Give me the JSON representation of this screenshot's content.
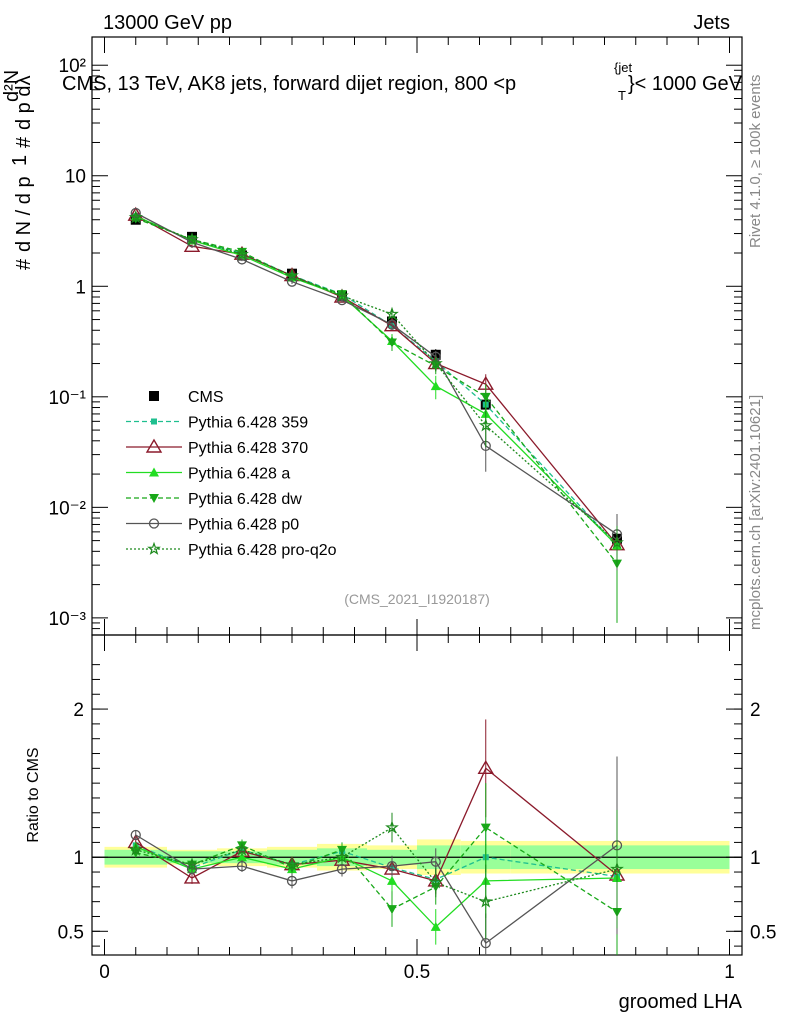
{
  "header": {
    "energy_label": "13000 GeV pp",
    "category_label": "Jets",
    "plot_title": "CMS, 13 TeV, AK8 jets, forward dijet region, 800 <p",
    "plot_title_sup": "{jet",
    "plot_title_sub": "T",
    "plot_title_end": "}< 1000 GeV",
    "analysis_id": "(CMS_2021_I1920187)",
    "side_rivet": "Rivet 4.1.0, ≥ 100k events",
    "side_mcplots": "mcplots.cern.ch [arXiv:2401.10621]"
  },
  "colors": {
    "data": "#000000",
    "p359": "#1fbf8f",
    "p370": "#8b1a2b",
    "pa": "#22dd22",
    "pdw": "#18a818",
    "pp0": "#555555",
    "pq2o": "#1d8a1d",
    "band_yellow": "#ffff99",
    "band_green": "#99ff99"
  },
  "chart_data": [
    {
      "type": "line",
      "panel": "main",
      "yscale": "log",
      "xlim": [
        -0.02,
        1.02
      ],
      "ylim": [
        0.0007,
        180
      ],
      "ylabel": "1/dN/dp_T # d²N/dp_T dλ",
      "y_tick_labels": [
        "10⁻³",
        "10⁻²",
        "10⁻¹",
        "1",
        "10",
        "10²"
      ],
      "x": [
        0.05,
        0.14,
        0.22,
        0.3,
        0.38,
        0.46,
        0.53,
        0.61,
        0.82
      ],
      "series": [
        {
          "key": "data",
          "name": "CMS",
          "values": [
            4.0,
            2.8,
            1.9,
            1.3,
            0.82,
            0.48,
            0.24,
            0.085,
            0.0052
          ],
          "err": [
            0.2,
            0.12,
            0.08,
            0.07,
            0.05,
            0.06,
            0.03,
            0.015,
            0.0008
          ]
        },
        {
          "key": "p359",
          "name": "Pythia 6.428 359",
          "values": [
            4.3,
            2.6,
            2.0,
            1.25,
            0.85,
            0.44,
            0.21,
            0.085,
            0.0045
          ],
          "err": [
            0.1,
            0.08,
            0.06,
            0.05,
            0.04,
            0.04,
            0.03,
            0.02,
            0.002
          ]
        },
        {
          "key": "p370",
          "name": "Pythia 6.428 370",
          "values": [
            4.4,
            2.3,
            1.95,
            1.25,
            0.8,
            0.44,
            0.2,
            0.13,
            0.0046
          ],
          "err": [
            0.1,
            0.08,
            0.06,
            0.05,
            0.04,
            0.04,
            0.03,
            0.03,
            0.002
          ]
        },
        {
          "key": "pa",
          "name": "Pythia 6.428 a",
          "values": [
            4.3,
            2.6,
            1.9,
            1.2,
            0.82,
            0.32,
            0.125,
            0.07,
            0.0045
          ],
          "err": [
            0.1,
            0.08,
            0.06,
            0.05,
            0.04,
            0.05,
            0.03,
            0.02,
            0.002
          ]
        },
        {
          "key": "pdw",
          "name": "Pythia 6.428 dw",
          "values": [
            4.1,
            2.65,
            2.05,
            1.2,
            0.85,
            0.31,
            0.19,
            0.1,
            0.0031
          ],
          "err": [
            0.1,
            0.08,
            0.06,
            0.05,
            0.04,
            0.05,
            0.03,
            0.03,
            0.0022
          ]
        },
        {
          "key": "pp0",
          "name": "Pythia 6.428 p0",
          "values": [
            4.6,
            2.5,
            1.75,
            1.1,
            0.75,
            0.45,
            0.23,
            0.036,
            0.0057
          ],
          "err": [
            0.1,
            0.08,
            0.06,
            0.05,
            0.04,
            0.04,
            0.03,
            0.015,
            0.003
          ]
        },
        {
          "key": "pq2o",
          "name": "Pythia 6.428 pro-q2o",
          "values": [
            4.2,
            2.65,
            1.95,
            1.25,
            0.82,
            0.56,
            0.2,
            0.055,
            0.0048
          ],
          "err": [
            0.1,
            0.08,
            0.06,
            0.05,
            0.04,
            0.05,
            0.03,
            0.02,
            0.002
          ]
        }
      ]
    },
    {
      "type": "line",
      "panel": "ratio",
      "xlabel": "groomed LHA",
      "ylabel": "Ratio to CMS",
      "xlim": [
        -0.02,
        1.02
      ],
      "ylim": [
        0.34,
        2.5
      ],
      "x_tick_labels": [
        "0",
        "0.5",
        "1"
      ],
      "y_tick_labels": [
        "0.5",
        "1",
        "2"
      ],
      "bins": [
        {
          "lo": 0.0,
          "hi": 0.1,
          "stat": 0.05,
          "tot": 0.07
        },
        {
          "lo": 0.1,
          "hi": 0.18,
          "stat": 0.04,
          "tot": 0.05
        },
        {
          "lo": 0.18,
          "hi": 0.26,
          "stat": 0.04,
          "tot": 0.06
        },
        {
          "lo": 0.26,
          "hi": 0.34,
          "stat": 0.05,
          "tot": 0.07
        },
        {
          "lo": 0.34,
          "hi": 0.42,
          "stat": 0.06,
          "tot": 0.09
        },
        {
          "lo": 0.42,
          "hi": 0.5,
          "stat": 0.05,
          "tot": 0.08
        },
        {
          "lo": 0.5,
          "hi": 0.57,
          "stat": 0.08,
          "tot": 0.12
        },
        {
          "lo": 0.57,
          "hi": 0.65,
          "stat": 0.08,
          "tot": 0.11
        },
        {
          "lo": 0.65,
          "hi": 1.0,
          "stat": 0.08,
          "tot": 0.11
        }
      ],
      "series": [
        {
          "key": "p359",
          "values": [
            1.08,
            0.93,
            1.05,
            0.95,
            1.04,
            0.93,
            0.85,
            1.0,
            0.87
          ],
          "err": [
            0.03,
            0.04,
            0.04,
            0.05,
            0.05,
            0.07,
            0.09,
            0.2,
            0.4
          ]
        },
        {
          "key": "p370",
          "values": [
            1.1,
            0.86,
            1.04,
            0.95,
            0.98,
            0.92,
            0.84,
            1.6,
            0.88
          ],
          "err": [
            0.03,
            0.04,
            0.04,
            0.05,
            0.05,
            0.07,
            0.09,
            0.33,
            0.4
          ]
        },
        {
          "key": "pa",
          "values": [
            1.07,
            0.92,
            1.0,
            0.92,
            1.0,
            0.84,
            0.53,
            0.84,
            0.86
          ],
          "err": [
            0.03,
            0.04,
            0.04,
            0.05,
            0.05,
            0.08,
            0.12,
            0.25,
            0.4
          ]
        },
        {
          "key": "pdw",
          "values": [
            1.03,
            0.95,
            1.08,
            0.93,
            1.05,
            0.65,
            0.8,
            1.2,
            0.63
          ],
          "err": [
            0.03,
            0.04,
            0.04,
            0.05,
            0.05,
            0.12,
            0.12,
            0.3,
            0.45
          ]
        },
        {
          "key": "pp0",
          "values": [
            1.15,
            0.92,
            0.94,
            0.84,
            0.92,
            0.94,
            0.97,
            0.42,
            1.08
          ],
          "err": [
            0.03,
            0.04,
            0.04,
            0.05,
            0.05,
            0.07,
            0.09,
            0.2,
            0.6
          ]
        },
        {
          "key": "pq2o",
          "values": [
            1.05,
            0.95,
            1.05,
            0.95,
            1.0,
            1.2,
            0.83,
            0.7,
            0.92
          ],
          "err": [
            0.03,
            0.04,
            0.04,
            0.05,
            0.05,
            0.1,
            0.1,
            0.25,
            0.4
          ]
        }
      ]
    }
  ]
}
